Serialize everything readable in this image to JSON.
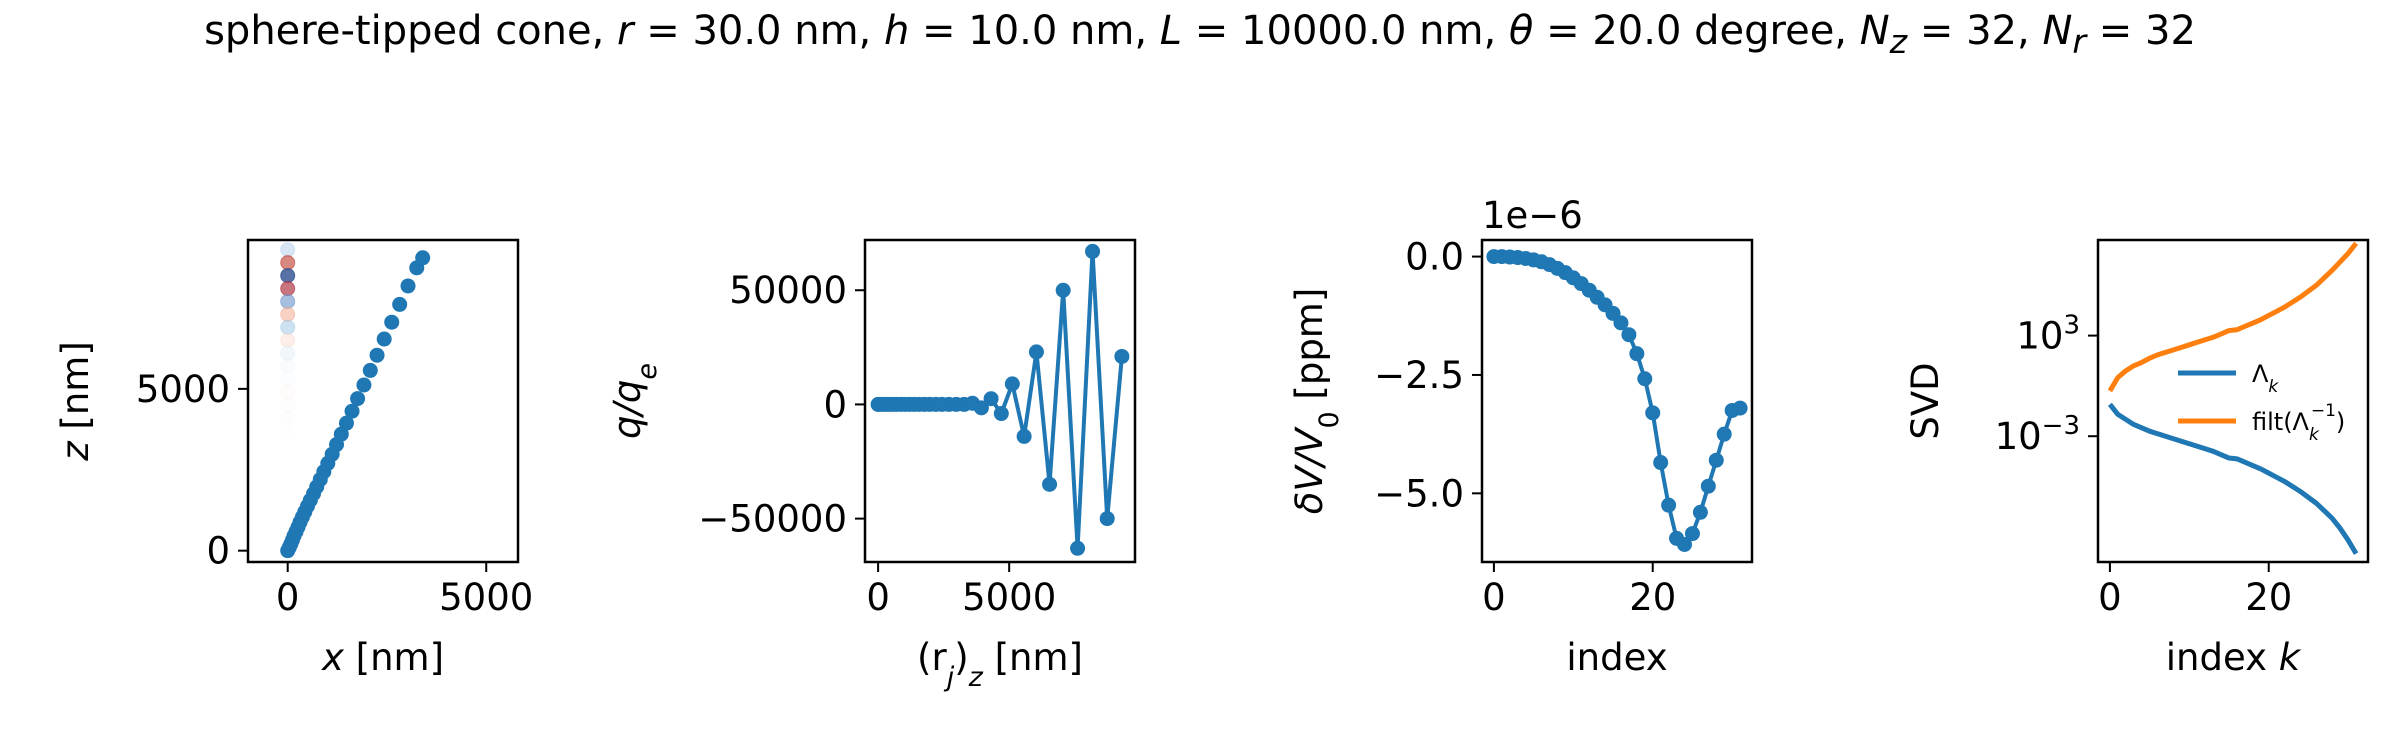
{
  "title": {
    "prefix": "sphere-tipped cone, ",
    "r_label": "r",
    "r_val": " = 30.0 nm, ",
    "h_label": "h",
    "h_val": " = 10.0 nm, ",
    "L_label": "L",
    "L_val": " = 10000.0 nm, ",
    "theta_label": "θ",
    "theta_val": " = 20.0 degree, ",
    "Nz_label": "N",
    "Nz_sub": "z",
    "Nz_val": " = 32, ",
    "Nr_label": "N",
    "Nr_sub": "r",
    "Nr_val": " = 32"
  },
  "colors": {
    "blue": "#1f77b4",
    "orange": "#ff7f0e",
    "red": "#d62728"
  },
  "chart_data": [
    {
      "id": "geometry",
      "type": "scatter",
      "xlabel": {
        "var": "x",
        "unit": " [nm]"
      },
      "ylabel": {
        "var": "z",
        "unit": " [nm]"
      },
      "xlim": [
        -1000,
        5800
      ],
      "ylim": [
        -350,
        9600
      ],
      "xticks": [
        {
          "v": 0,
          "label": "0"
        },
        {
          "v": 5000,
          "label": "5000"
        }
      ],
      "yticks": [
        {
          "v": 0,
          "label": "0"
        },
        {
          "v": 5000,
          "label": "5000"
        }
      ],
      "cone_points": {
        "x": [
          0,
          40,
          80,
          120,
          160,
          210,
          260,
          310,
          370,
          430,
          500,
          570,
          650,
          730,
          820,
          910,
          1010,
          1120,
          1230,
          1350,
          1480,
          1620,
          1760,
          1920,
          2080,
          2250,
          2430,
          2620,
          2820,
          3030,
          3250,
          3400
        ],
        "y": [
          0,
          100,
          210,
          330,
          460,
          590,
          730,
          880,
          1040,
          1200,
          1380,
          1560,
          1760,
          1970,
          2200,
          2440,
          2700,
          2980,
          3280,
          3600,
          3940,
          4310,
          4700,
          5120,
          5570,
          6040,
          6540,
          7060,
          7610,
          8180,
          8740,
          9050
        ]
      },
      "charge_points": {
        "x": [
          0,
          0,
          0,
          0,
          0,
          0,
          0,
          0,
          0,
          0,
          0,
          0,
          0,
          0,
          0,
          0
        ],
        "y": [
          9300,
          8900,
          8500,
          8100,
          7700,
          7300,
          6900,
          6500,
          6100,
          5700,
          5300,
          4900,
          4500,
          4100,
          3700,
          3300
        ],
        "colors": [
          "#bcd4ec",
          "#c0392b",
          "#2f4f90",
          "#b03a48",
          "#6b93c9",
          "#f2a58a",
          "#9cc5e3",
          "#fbd5c7",
          "#dde9f5",
          "#eef3f9",
          "#f6f8fb",
          "#fdf1ec",
          "#f3f6fa",
          "#fbf7f5",
          "#f8f9fb",
          "#fcfcfd"
        ],
        "opacity": [
          0.6,
          0.6,
          0.8,
          0.7,
          0.6,
          0.5,
          0.5,
          0.4,
          0.4,
          0.3,
          0.3,
          0.25,
          0.2,
          0.2,
          0.15,
          0.15
        ]
      }
    },
    {
      "id": "charges",
      "type": "line",
      "xlabel": {
        "text": "(r",
        "sub": "j",
        "text2": ")",
        "sub2": "z",
        "unit": " [nm]"
      },
      "ylabel": {
        "var": "q/q",
        "sub": "e"
      },
      "xlim": [
        -500,
        9800
      ],
      "ylim": [
        -69000,
        72000
      ],
      "xticks": [
        {
          "v": 0,
          "label": "0"
        },
        {
          "v": 5000,
          "label": "5000"
        }
      ],
      "yticks": [
        {
          "v": 50000,
          "label": "50000"
        },
        {
          "v": 0,
          "label": "0"
        },
        {
          "v": -50000,
          "label": "−50000"
        }
      ],
      "x": [
        0,
        100,
        210,
        330,
        460,
        590,
        730,
        880,
        1040,
        1200,
        1380,
        1560,
        1760,
        1970,
        2200,
        2440,
        2700,
        2980,
        3280,
        3600,
        3940,
        4310,
        4700,
        5120,
        5570,
        6040,
        6540,
        7060,
        7610,
        8180,
        8740,
        9300
      ],
      "y": [
        0,
        0,
        0,
        0,
        0,
        0,
        0,
        0,
        0,
        0,
        0,
        0,
        0,
        0,
        0,
        0,
        0,
        0,
        0,
        500,
        -1500,
        2500,
        -4000,
        9000,
        -14000,
        23000,
        -35000,
        50000,
        -63000,
        67000,
        -50000,
        21000
      ]
    },
    {
      "id": "voltage",
      "type": "line",
      "xlabel": {
        "text": "index"
      },
      "ylabel": {
        "var": "δV/V",
        "sub": "0",
        "unit": " [ppm]"
      },
      "offset_text": "1e−6",
      "xlim": [
        -1.5,
        32.5
      ],
      "ylim": [
        -6.45,
        0.35
      ],
      "xticks": [
        {
          "v": 0,
          "label": "0"
        },
        {
          "v": 20,
          "label": "20"
        }
      ],
      "yticks": [
        {
          "v": 0,
          "label": "0.0"
        },
        {
          "v": -2.5,
          "label": "−2.5"
        },
        {
          "v": -5,
          "label": "−5.0"
        }
      ],
      "x": [
        0,
        1,
        2,
        3,
        4,
        5,
        6,
        7,
        8,
        9,
        10,
        11,
        12,
        13,
        14,
        15,
        16,
        17,
        18,
        19,
        20,
        21,
        22,
        23,
        24,
        25,
        26,
        27,
        28,
        29,
        30,
        31
      ],
      "y": [
        0,
        0,
        -0.01,
        -0.02,
        -0.04,
        -0.07,
        -0.11,
        -0.17,
        -0.25,
        -0.34,
        -0.45,
        -0.57,
        -0.71,
        -0.86,
        -1.02,
        -1.2,
        -1.4,
        -1.65,
        -2.05,
        -2.58,
        -3.3,
        -4.35,
        -5.25,
        -5.95,
        -6.08,
        -5.85,
        -5.4,
        -4.85,
        -4.3,
        -3.75,
        -3.25,
        -3.2
      ]
    },
    {
      "id": "svd",
      "type": "line",
      "log_y": true,
      "xlabel": {
        "text": "index ",
        "var": "k"
      },
      "ylabel": {
        "text": "SVD"
      },
      "xlim": [
        -1.5,
        32.5
      ],
      "ylim_log10": [
        -10.5,
        8.7
      ],
      "xticks": [
        {
          "v": 0,
          "label": "0"
        },
        {
          "v": 20,
          "label": "20"
        }
      ],
      "yticks": [
        {
          "v": 3,
          "label": "10",
          "sup": "3"
        },
        {
          "v": -3,
          "label": "10",
          "sup": "−3"
        }
      ],
      "series": [
        {
          "name": "Λ",
          "name_sub": "k",
          "color": "#1f77b4",
          "x": [
            0,
            1,
            2,
            3,
            4,
            5,
            6,
            7,
            8,
            9,
            10,
            11,
            12,
            13,
            14,
            15,
            16,
            17,
            18,
            19,
            20,
            21,
            22,
            23,
            24,
            25,
            26,
            27,
            28,
            29,
            30,
            31
          ],
          "log10": [
            -1.1,
            -1.7,
            -2.0,
            -2.3,
            -2.5,
            -2.7,
            -2.85,
            -3.0,
            -3.15,
            -3.3,
            -3.45,
            -3.6,
            -3.75,
            -3.9,
            -4.1,
            -4.3,
            -4.35,
            -4.55,
            -4.75,
            -4.95,
            -5.2,
            -5.45,
            -5.7,
            -6.0,
            -6.3,
            -6.65,
            -7.0,
            -7.45,
            -7.9,
            -8.5,
            -9.2,
            -10.0
          ]
        },
        {
          "name": "filt(Λ",
          "name_sub": "k",
          "name_sup": "−1",
          "name_end": ")",
          "color": "#ff7f0e",
          "x": [
            0,
            1,
            2,
            3,
            4,
            5,
            6,
            7,
            8,
            9,
            10,
            11,
            12,
            13,
            14,
            15,
            16,
            17,
            18,
            19,
            20,
            21,
            22,
            23,
            24,
            25,
            26,
            27,
            28,
            29,
            30,
            31
          ],
          "log10": [
            -0.3,
            0.5,
            0.9,
            1.2,
            1.4,
            1.65,
            1.85,
            2.0,
            2.15,
            2.3,
            2.45,
            2.6,
            2.75,
            2.9,
            3.1,
            3.3,
            3.35,
            3.55,
            3.75,
            3.95,
            4.2,
            4.45,
            4.7,
            5.0,
            5.3,
            5.65,
            6.0,
            6.45,
            6.9,
            7.4,
            7.9,
            8.5
          ]
        }
      ],
      "legend_loc": "center-right"
    }
  ]
}
